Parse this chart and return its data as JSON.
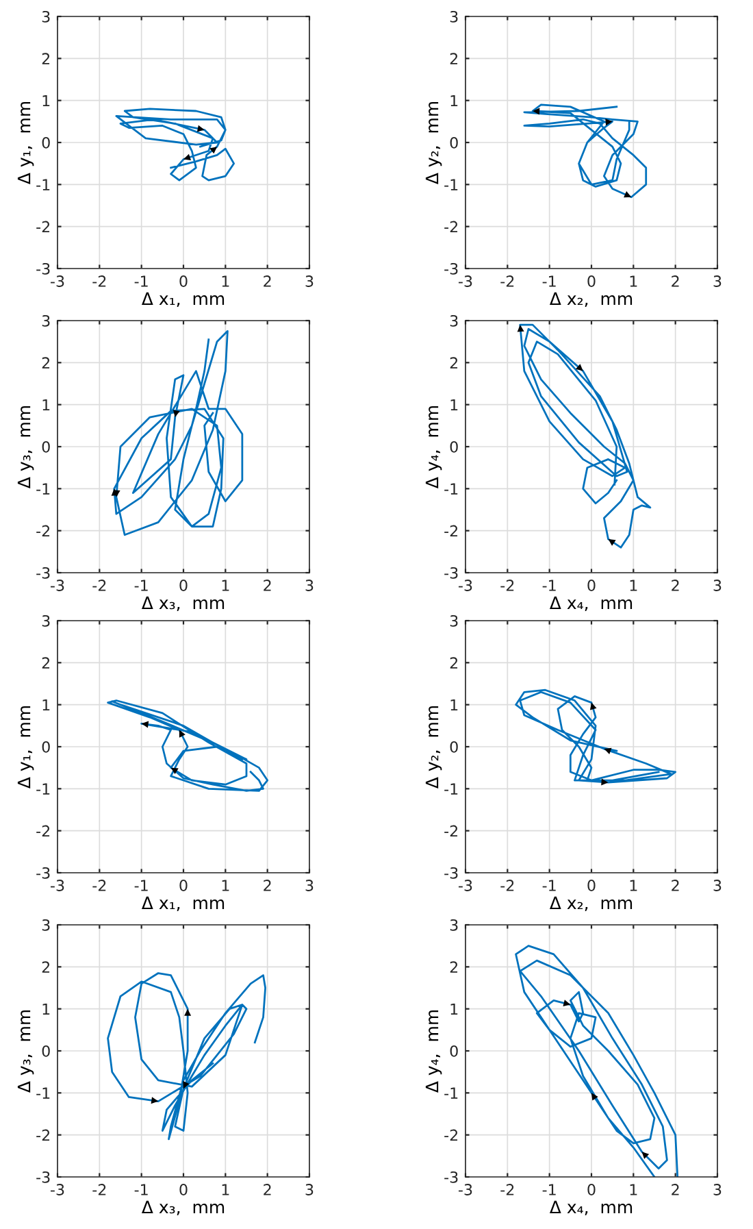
{
  "chart_data": [
    {
      "type": "line",
      "xlabel": "Δ x₁,  mm",
      "ylabel": "Δ y₁,  mm",
      "xlim": [
        -3,
        3
      ],
      "ylim": [
        -3,
        3
      ],
      "xticks": [
        -3,
        -2,
        -1,
        0,
        1,
        2,
        3
      ],
      "yticks": [
        -3,
        -2,
        -1,
        0,
        1,
        2,
        3
      ],
      "grid": true,
      "series": [
        {
          "color": "#0072bd",
          "x": [
            -0.3,
            0.3,
            0.8,
            1.0,
            1.2,
            1.0,
            0.6,
            0.45,
            0.55,
            0.8,
            1.0,
            0.9,
            0.3,
            -0.8,
            -1.4,
            -1.2,
            -0.2,
            0.7,
            0.6,
            0,
            -0.3,
            -0.1,
            0.3,
            0.2,
            0.0,
            -0.5,
            -1.3,
            -1.5,
            -0.7,
            0.5,
            0.8,
            0.3,
            -0.9,
            -1.6,
            -0.3,
            0.8,
            1.0,
            0.9,
            0.4
          ],
          "values": [
            -0.6,
            -0.45,
            -0.3,
            -0.15,
            -0.5,
            -0.8,
            -0.9,
            -0.8,
            -0.3,
            -0.1,
            0.3,
            0.6,
            0.75,
            0.8,
            0.75,
            0.6,
            0.45,
            0.1,
            -0.2,
            -0.4,
            -0.75,
            -0.9,
            -0.6,
            -0.2,
            0.2,
            0.4,
            0.35,
            0.45,
            0.55,
            0.3,
            0.0,
            -0.05,
            0.1,
            0.63,
            0.55,
            0.55,
            0.3,
            0.05,
            -0.1
          ]
        }
      ]
    },
    {
      "type": "line",
      "xlabel": "Δ x₂,  mm",
      "ylabel": "Δ y₂,  mm",
      "xlim": [
        -3,
        3
      ],
      "ylim": [
        -3,
        3
      ],
      "xticks": [
        -3,
        -2,
        -1,
        0,
        1,
        2,
        3
      ],
      "yticks": [
        -3,
        -2,
        -1,
        0,
        1,
        2,
        3
      ],
      "grid": true,
      "series": [
        {
          "color": "#0072bd",
          "x": [
            0.6,
            -0.3,
            -1.6,
            -1.1,
            0.0,
            0.5,
            1.1,
            1.0,
            0.5,
            0.3,
            0.5,
            0.95,
            1.3,
            1.3,
            1.0,
            0.5,
            0.2,
            -0.2,
            -1.0,
            -1.6,
            -1.0,
            -0.1,
            0.5,
            0.3,
            -0.1,
            -0.3,
            -0.2,
            0.1,
            0.6,
            0.7,
            0.5,
            0.0,
            -0.5,
            -1.4,
            -1.2,
            -0.5,
            0.3,
            -0.1,
            -0.3,
            0.0,
            0.5,
            0.6,
            0.9,
            0.9
          ],
          "values": [
            0.85,
            0.75,
            0.72,
            0.68,
            0.6,
            0.55,
            0.5,
            0.2,
            -0.3,
            -0.8,
            -1.1,
            -1.3,
            -1.0,
            -0.6,
            -0.3,
            0.1,
            0.45,
            0.55,
            0.45,
            0.4,
            0.38,
            0.45,
            0.5,
            0.35,
            0.0,
            -0.5,
            -0.9,
            -1.05,
            -0.9,
            -0.5,
            -0.1,
            0.3,
            0.7,
            0.75,
            0.9,
            0.85,
            0.5,
            0.0,
            -0.5,
            -1.0,
            -0.9,
            -0.4,
            0.3,
            0.5
          ]
        }
      ]
    },
    {
      "type": "line",
      "xlabel": "Δ x₃,  mm",
      "ylabel": "Δ y₃,  mm",
      "xlim": [
        -3,
        3
      ],
      "ylim": [
        -3,
        3
      ],
      "xticks": [
        -3,
        -2,
        -1,
        0,
        1,
        2,
        3
      ],
      "yticks": [
        -3,
        -2,
        -1,
        0,
        1,
        2,
        3
      ],
      "grid": true,
      "series": [
        {
          "color": "#0072bd",
          "x": [
            0.6,
            0.5,
            0.3,
            0.0,
            -0.2,
            0.2,
            0.6,
            0.9,
            0.8,
            0.2,
            -0.8,
            -1.5,
            -1.6,
            -1.4,
            -0.6,
            0.2,
            0.7,
            1.0,
            1.05,
            0.8,
            0.5,
            0.2,
            -0.2,
            -1.0,
            -1.6,
            -1.65,
            -1.0,
            -0.3,
            0.5,
            0.95,
            0.9,
            0.7,
            0.2,
            -0.3,
            -0.4,
            -0.2,
            0.0,
            -0.2,
            -0.3,
            -1.2,
            -0.6,
            0.3,
            0.6,
            1.0,
            1.4,
            1.4,
            1.0,
            0.6,
            0.5,
            0.7
          ],
          "values": [
            2.55,
            1.8,
            0.9,
            -0.3,
            -1.5,
            -1.9,
            -1.6,
            -0.5,
            0.5,
            0.9,
            0.7,
            0.0,
            -1.2,
            -2.1,
            -1.8,
            -0.8,
            0.4,
            1.8,
            2.75,
            2.5,
            1.5,
            0.5,
            -0.3,
            -1.2,
            -1.6,
            -1.0,
            0.2,
            0.85,
            0.9,
            0.2,
            -1.0,
            -1.9,
            -1.9,
            -1.2,
            0.2,
            1.6,
            1.7,
            0.7,
            -0.3,
            -1.1,
            0.3,
            1.8,
            0.9,
            0.9,
            0.3,
            -0.8,
            -1.3,
            -0.6,
            0.5,
            0.8
          ]
        }
      ]
    },
    {
      "type": "line",
      "xlabel": "Δ x₄,  mm",
      "ylabel": "Δ y₄,  mm",
      "xlim": [
        -3,
        3
      ],
      "ylim": [
        -3,
        3
      ],
      "xticks": [
        -3,
        -2,
        -1,
        0,
        1,
        2,
        3
      ],
      "yticks": [
        -3,
        -2,
        -1,
        0,
        1,
        2,
        3
      ],
      "grid": true,
      "series": [
        {
          "color": "#0072bd",
          "x": [
            0.6,
            0.4,
            0.1,
            -0.2,
            -0.1,
            0.4,
            0.8,
            0.5,
            -0.2,
            -1.0,
            -1.6,
            -1.7,
            -1.4,
            -0.8,
            0.2,
            0.6,
            0.9,
            1.1,
            1.4,
            1.2,
            1.0,
            0.9,
            0.7,
            0.4,
            0.3,
            0.7,
            1.0,
            0.8,
            0.3,
            -0.5,
            -1.2,
            -1.6,
            -1.5,
            -1.0,
            -0.2,
            0.5,
            0.85,
            0.6,
            -0.3,
            -1.2,
            -1.5,
            -1.3,
            -0.8,
            0.1,
            0.6,
            0.55
          ],
          "values": [
            -0.8,
            -1.1,
            -1.35,
            -1.0,
            -0.5,
            -0.3,
            -0.5,
            -0.7,
            -0.3,
            0.6,
            1.8,
            2.9,
            2.9,
            2.3,
            1.2,
            0.4,
            -0.4,
            -1.2,
            -1.45,
            -1.4,
            -1.5,
            -2.1,
            -2.4,
            -2.2,
            -1.7,
            -1.3,
            -0.8,
            -0.4,
            0.0,
            0.8,
            1.6,
            2.4,
            2.8,
            2.5,
            1.8,
            0.6,
            -0.6,
            -0.7,
            0.1,
            1.2,
            2.0,
            2.5,
            2.2,
            1.1,
            0.0,
            -0.9
          ]
        }
      ]
    },
    {
      "type": "line",
      "xlabel": "Δ x₁,  mm",
      "ylabel": "Δ y₁,  mm",
      "xlim": [
        -3,
        3
      ],
      "ylim": [
        -3,
        3
      ],
      "xticks": [
        -3,
        -2,
        -1,
        0,
        1,
        2,
        3
      ],
      "yticks": [
        -3,
        -2,
        -1,
        0,
        1,
        2,
        3
      ],
      "grid": true,
      "series": [
        {
          "color": "#0072bd",
          "x": [
            1.6,
            1.8,
            1.9,
            1.5,
            0.7,
            0.0,
            -0.4,
            -0.5,
            -0.3,
            -0.6,
            -1.0,
            0.2,
            1.1,
            1.8,
            2.0,
            1.8,
            0.6,
            -0.3,
            -0.1,
            0.1,
            -0.1,
            -0.8,
            -1.8,
            -1.6,
            -0.5,
            0.6,
            1.5,
            1.5,
            1.0,
            0.2,
            -0.3,
            0.0,
            0.8,
            1.5,
            0.8,
            -0.5,
            -1.7,
            -1.5,
            0.0,
            1.4
          ],
          "values": [
            -0.6,
            -0.8,
            -1.0,
            -1.05,
            -0.9,
            -0.75,
            -0.4,
            0.0,
            0.4,
            0.5,
            0.55,
            0.35,
            -0.1,
            -0.5,
            -0.8,
            -1.05,
            -1.0,
            -0.7,
            -0.3,
            0.0,
            0.4,
            0.7,
            1.05,
            1.1,
            0.8,
            0.1,
            -0.4,
            -0.7,
            -0.9,
            -0.8,
            -0.5,
            -0.1,
            0.0,
            -0.3,
            0.05,
            0.6,
            1.08,
            1.0,
            0.5,
            -0.3
          ]
        }
      ]
    },
    {
      "type": "line",
      "xlabel": "Δ x₂,  mm",
      "ylabel": "Δ y₂,  mm",
      "xlim": [
        -3,
        3
      ],
      "ylim": [
        -3,
        3
      ],
      "xticks": [
        -3,
        -2,
        -1,
        0,
        1,
        2,
        3
      ],
      "yticks": [
        -3,
        -2,
        -1,
        0,
        1,
        2,
        3
      ],
      "grid": true,
      "series": [
        {
          "color": "#0072bd",
          "x": [
            0.6,
            -0.5,
            -1.4,
            -1.8,
            -1.6,
            -1.1,
            -0.4,
            0.1,
            0.0,
            -0.3,
            0.4,
            1.8,
            2.0,
            1.6,
            1.0,
            0.0,
            -0.5,
            -0.5,
            -0.2,
            0.1,
            0.0,
            -0.4,
            -0.8,
            -0.7,
            -0.3,
            0.0,
            -0.1,
            0.8,
            1.9,
            1.3,
            0.3,
            -0.8,
            -1.6,
            -1.7,
            -1.2,
            -0.5,
            0.1,
            -0.2,
            -0.4,
            0.5,
            1.6
          ],
          "values": [
            -0.1,
            0.15,
            0.7,
            1.0,
            1.3,
            1.35,
            1.1,
            0.5,
            -0.3,
            -0.8,
            -0.85,
            -0.75,
            -0.6,
            -0.55,
            -0.55,
            -0.8,
            -0.6,
            -0.2,
            0.3,
            0.7,
            1.05,
            1.2,
            0.9,
            0.4,
            0.0,
            -0.5,
            -0.8,
            -0.8,
            -0.65,
            -0.4,
            -0.05,
            0.4,
            0.75,
            1.1,
            1.3,
            1.05,
            0.4,
            -0.2,
            -0.8,
            -0.8,
            -0.6
          ]
        }
      ]
    },
    {
      "type": "line",
      "xlabel": "Δ x₃,  mm",
      "ylabel": "Δ y₃,  mm",
      "xlim": [
        -3,
        3
      ],
      "ylim": [
        -3,
        3
      ],
      "xticks": [
        -3,
        -2,
        -1,
        0,
        1,
        2,
        3
      ],
      "yticks": [
        -3,
        -2,
        -1,
        0,
        1,
        2,
        3
      ],
      "grid": true,
      "series": [
        {
          "color": "#0072bd",
          "x": [
            1.7,
            1.9,
            1.95,
            1.9,
            1.6,
            1.0,
            0.4,
            0.0,
            -0.3,
            -0.35,
            -0.1,
            0.1,
            0.1,
            -0.3,
            -0.6,
            -1.0,
            -1.15,
            -1.0,
            -0.6,
            0.2,
            1.0,
            1.3,
            1.4,
            1.1,
            0.5,
            0.0,
            -0.2,
            0.0,
            0.1,
            0.0,
            -0.1,
            -0.3,
            -1.0,
            -1.5,
            -1.8,
            -1.7,
            -1.3,
            -0.6,
            0.4,
            1.2,
            1.5,
            1.4,
            1.0,
            0.5,
            0.2,
            -0.2,
            -0.5,
            -0.4,
            0.2,
            0.7
          ],
          "values": [
            0.2,
            0.8,
            1.5,
            1.8,
            1.6,
            0.9,
            0.0,
            -0.7,
            -1.8,
            -2.1,
            -1.2,
            0.0,
            1.0,
            1.8,
            1.85,
            1.6,
            0.8,
            -0.2,
            -0.7,
            -0.85,
            -0.1,
            0.8,
            1.1,
            1.0,
            0.3,
            -0.9,
            -1.8,
            -1.9,
            -1.0,
            0.0,
            0.8,
            1.4,
            1.65,
            1.3,
            0.3,
            -0.5,
            -1.1,
            -1.2,
            -0.6,
            0.4,
            1.0,
            1.1,
            0.6,
            -0.1,
            -0.6,
            -1.3,
            -1.9,
            -1.4,
            -0.7,
            -0.3
          ]
        }
      ]
    },
    {
      "type": "line",
      "xlabel": "Δ x₄,  mm",
      "ylabel": "Δ y₄,  mm",
      "xlim": [
        -3,
        3
      ],
      "ylim": [
        -3,
        3
      ],
      "xticks": [
        -3,
        -2,
        -1,
        0,
        1,
        2,
        3
      ],
      "yticks": [
        -3,
        -2,
        -1,
        0,
        1,
        2,
        3
      ],
      "grid": true,
      "series": [
        {
          "color": "#0072bd",
          "x": [
            1.5,
            1.0,
            0.4,
            -0.2,
            -0.5,
            -0.3,
            0.1,
            0.0,
            -0.5,
            -1.0,
            -1.3,
            -0.9,
            -0.5,
            -0.3,
            -0.2,
            -0.3,
            -0.5,
            -0.2,
            0.4,
            1.1,
            1.5,
            1.4,
            1.0,
            0.6,
            0.0,
            -0.8,
            -1.6,
            -1.8,
            -1.5,
            -0.9,
            -0.2,
            0.5,
            1.2,
            1.7,
            1.8,
            1.6,
            1.2,
            0.5,
            -0.3,
            -1.2,
            -1.7,
            -1.3,
            -0.5,
            0.4,
            1.0,
            1.5,
            2.0,
            2.05
          ],
          "values": [
            -3.0,
            -2.3,
            -1.6,
            -0.6,
            0.3,
            0.9,
            0.8,
            0.3,
            0.1,
            0.5,
            0.9,
            1.2,
            1.1,
            0.7,
            0.9,
            1.4,
            1.2,
            0.6,
            0.0,
            -0.8,
            -1.6,
            -2.1,
            -2.2,
            -1.9,
            -1.0,
            0.2,
            1.4,
            2.3,
            2.5,
            2.3,
            1.5,
            0.3,
            -0.8,
            -1.8,
            -2.6,
            -2.8,
            -2.4,
            -1.3,
            0.0,
            1.3,
            1.9,
            2.15,
            1.8,
            0.9,
            -0.1,
            -1.0,
            -2.0,
            -3.0
          ]
        }
      ]
    }
  ]
}
